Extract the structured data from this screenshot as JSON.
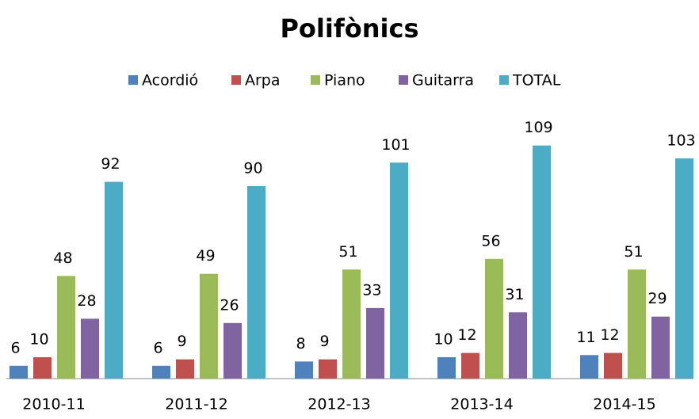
{
  "chart_data": {
    "type": "bar",
    "title": "Polifònics",
    "categories": [
      "2010-11",
      "2011-12",
      "2012-13",
      "2013-14",
      "2014-15"
    ],
    "series": [
      {
        "name": "Acordió",
        "color": "#4f81bd",
        "values": [
          6,
          6,
          8,
          10,
          11
        ]
      },
      {
        "name": "Arpa",
        "color": "#c0504d",
        "values": [
          10,
          9,
          9,
          12,
          12
        ]
      },
      {
        "name": "Piano",
        "color": "#9bbb59",
        "values": [
          48,
          49,
          51,
          56,
          51
        ]
      },
      {
        "name": "Guitarra",
        "color": "#8064a2",
        "values": [
          28,
          26,
          33,
          31,
          29
        ]
      },
      {
        "name": "TOTAL",
        "color": "#4bacc6",
        "values": [
          92,
          90,
          101,
          109,
          103
        ]
      }
    ],
    "ylim": [
      0,
      120
    ],
    "legend": "top"
  }
}
